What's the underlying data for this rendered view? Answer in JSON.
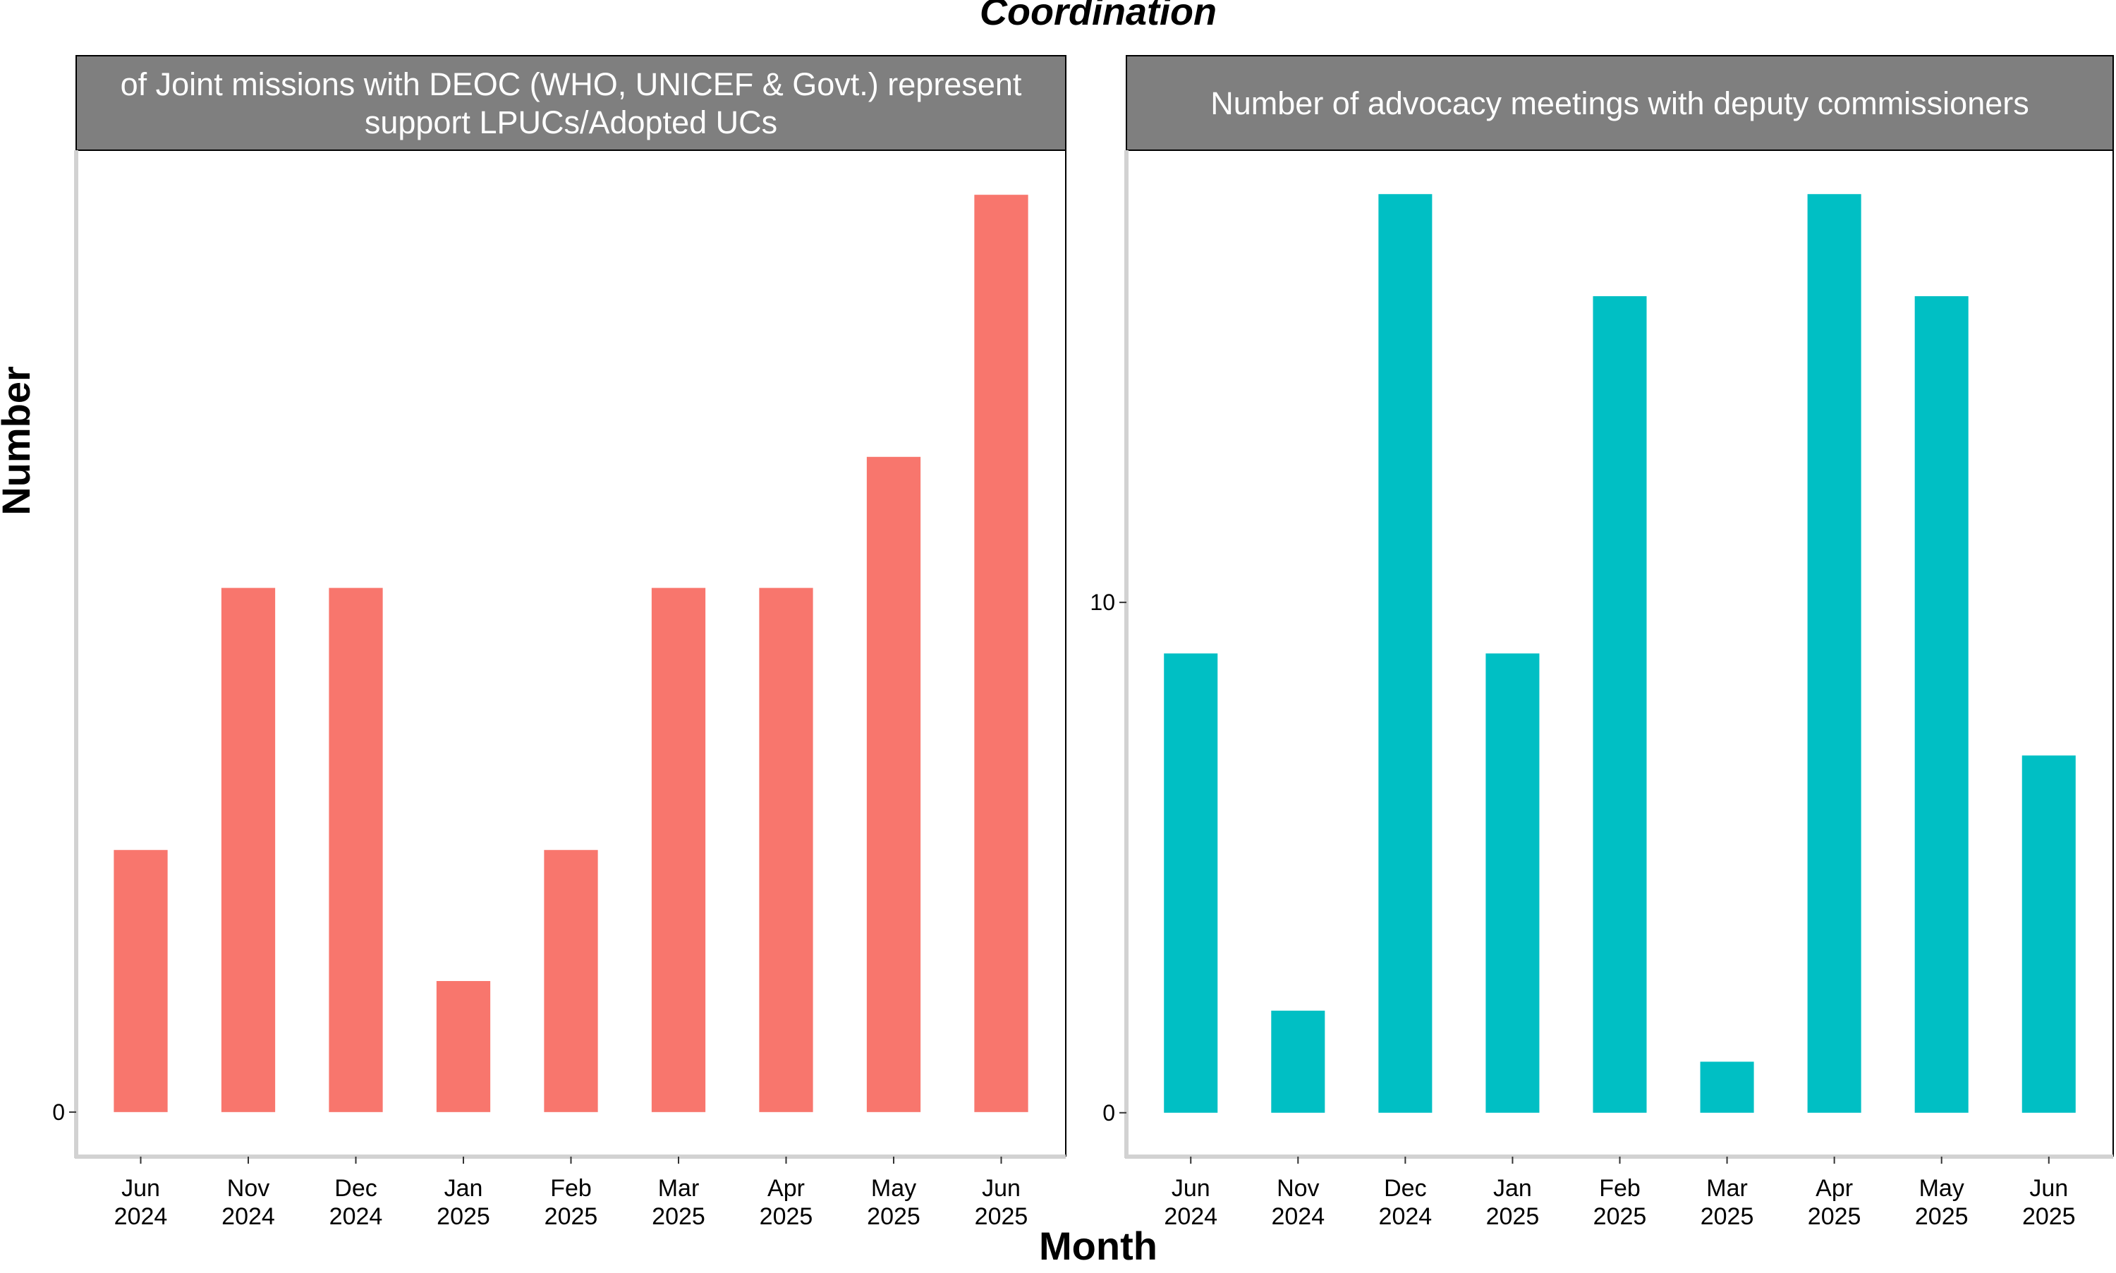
{
  "title": "Coordination",
  "xlabel": "Month",
  "ylabel": "Number",
  "chart_data": [
    {
      "type": "bar",
      "panel_title": [
        "of Joint missions with DEOC (WHO, UNICEF & Govt.) represent",
        "support LPUCs/Adopted UCs"
      ],
      "categories": [
        [
          "Jun",
          "2024"
        ],
        [
          "Nov",
          "2024"
        ],
        [
          "Dec",
          "2024"
        ],
        [
          "Jan",
          "2025"
        ],
        [
          "Feb",
          "2025"
        ],
        [
          "Mar",
          "2025"
        ],
        [
          "Apr",
          "2025"
        ],
        [
          "May",
          "2025"
        ],
        [
          "Jun",
          "2025"
        ]
      ],
      "values": [
        2,
        4,
        4,
        1,
        2,
        4,
        4,
        5,
        7
      ],
      "yticks": [
        0
      ],
      "ylim": [
        -0.34,
        7.34
      ],
      "color": "#F8766D",
      "legend": "none"
    },
    {
      "type": "bar",
      "panel_title": [
        "Number of advocacy meetings with deputy commissioners"
      ],
      "categories": [
        [
          "Jun",
          "2024"
        ],
        [
          "Nov",
          "2024"
        ],
        [
          "Dec",
          "2024"
        ],
        [
          "Jan",
          "2025"
        ],
        [
          "Feb",
          "2025"
        ],
        [
          "Mar",
          "2025"
        ],
        [
          "Apr",
          "2025"
        ],
        [
          "May",
          "2025"
        ],
        [
          "Jun",
          "2025"
        ]
      ],
      "values": [
        9,
        2,
        18,
        9,
        16,
        1,
        18,
        16,
        7
      ],
      "yticks": [
        0,
        10
      ],
      "ylim": [
        -0.86,
        18.86
      ],
      "color": "#00BFC4",
      "legend": "none"
    }
  ]
}
